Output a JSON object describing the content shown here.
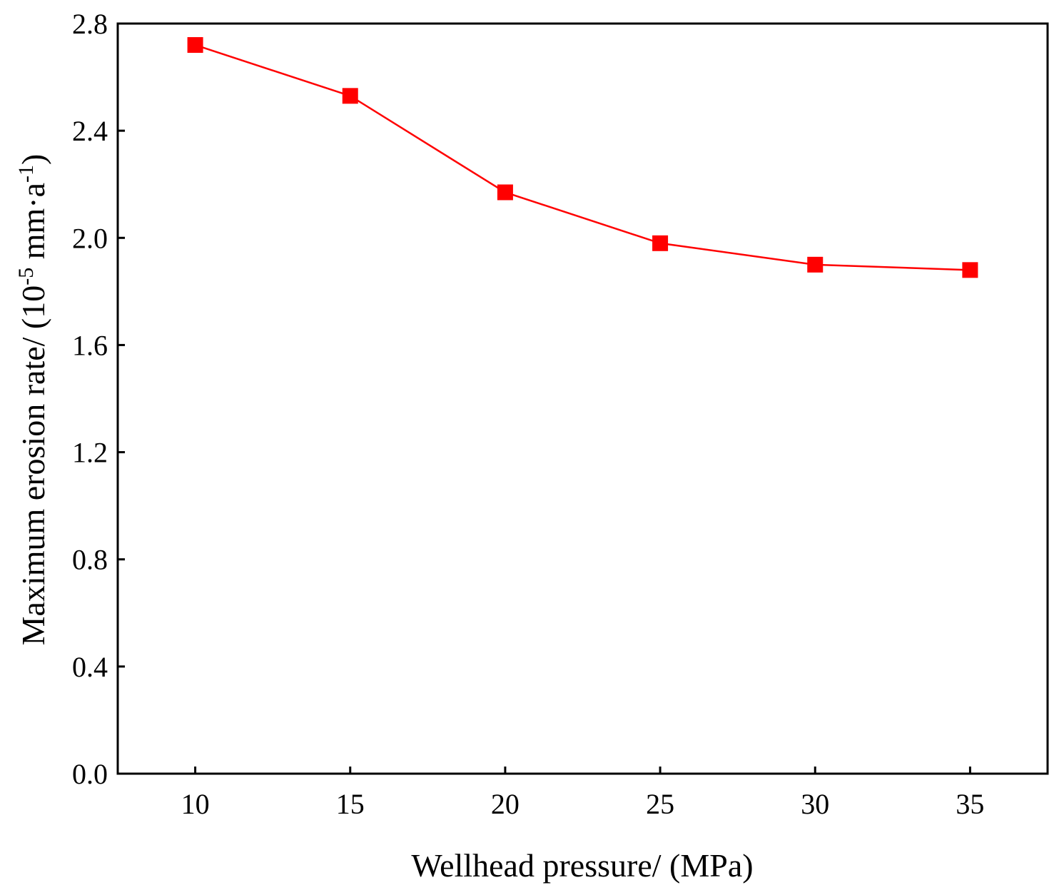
{
  "chart_data": {
    "type": "line",
    "title": "",
    "xlabel": "Wellhead pressure/ (MPa)",
    "ylabel_parts": {
      "main": "Maximum erosion rate/ (10",
      "sup1": "-5",
      "mid": " mm·a",
      "sup2": "-1",
      "end": ")"
    },
    "xlim": [
      7.5,
      37.5
    ],
    "ylim": [
      0.0,
      2.8
    ],
    "x_ticks": [
      10,
      15,
      20,
      25,
      30,
      35
    ],
    "x_tick_labels": [
      "10",
      "15",
      "20",
      "25",
      "30",
      "35"
    ],
    "y_ticks": [
      0.0,
      0.4,
      0.8,
      1.2,
      1.6,
      2.0,
      2.4,
      2.8
    ],
    "y_tick_labels": [
      "0.0",
      "0.4",
      "0.8",
      "1.2",
      "1.6",
      "2.0",
      "2.4",
      "2.8"
    ],
    "grid": false,
    "series": [
      {
        "x": [
          10,
          15,
          20,
          25,
          30,
          35
        ],
        "y": [
          2.72,
          2.53,
          2.17,
          1.98,
          1.9,
          1.88
        ],
        "color": "#ff0000",
        "marker": "square"
      }
    ]
  }
}
